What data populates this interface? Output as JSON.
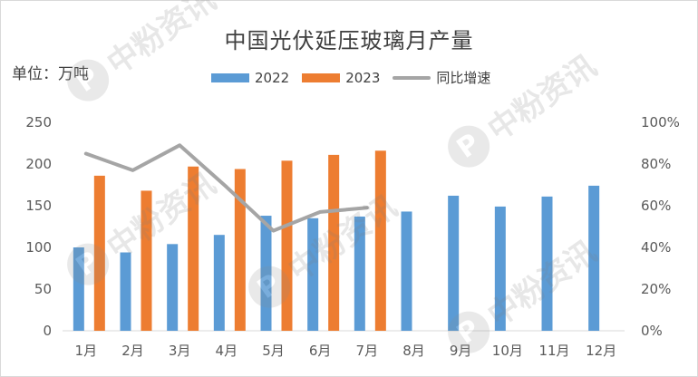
{
  "chart_data": {
    "type": "bar",
    "title": "中国光伏延压玻璃月产量",
    "unit_label": "单位：万吨",
    "categories": [
      "1月",
      "2月",
      "3月",
      "4月",
      "5月",
      "6月",
      "7月",
      "8月",
      "9月",
      "10月",
      "11月",
      "12月"
    ],
    "series": [
      {
        "name": "2022",
        "type": "bar",
        "color": "#5b9bd5",
        "values": [
          100,
          94,
          104,
          115,
          138,
          135,
          137,
          143,
          162,
          149,
          161,
          174
        ]
      },
      {
        "name": "2023",
        "type": "bar",
        "color": "#ed7d31",
        "values": [
          186,
          168,
          197,
          194,
          204,
          211,
          216,
          null,
          null,
          null,
          null,
          null
        ]
      },
      {
        "name": "同比增速",
        "type": "line",
        "axis": "right",
        "color": "#a5a5a5",
        "values": [
          0.85,
          0.77,
          0.89,
          0.69,
          0.48,
          0.57,
          0.59,
          null,
          null,
          null,
          null,
          null
        ]
      }
    ],
    "left_axis": {
      "ylim": [
        0,
        250
      ],
      "ticks": [
        "0",
        "50",
        "100",
        "150",
        "200",
        "250"
      ]
    },
    "right_axis": {
      "ylim": [
        0,
        1
      ],
      "ticks": [
        "0%",
        "20%",
        "40%",
        "60%",
        "80%",
        "100%"
      ]
    },
    "legend_position": "top",
    "grid": false
  },
  "watermark": "中粉资讯"
}
